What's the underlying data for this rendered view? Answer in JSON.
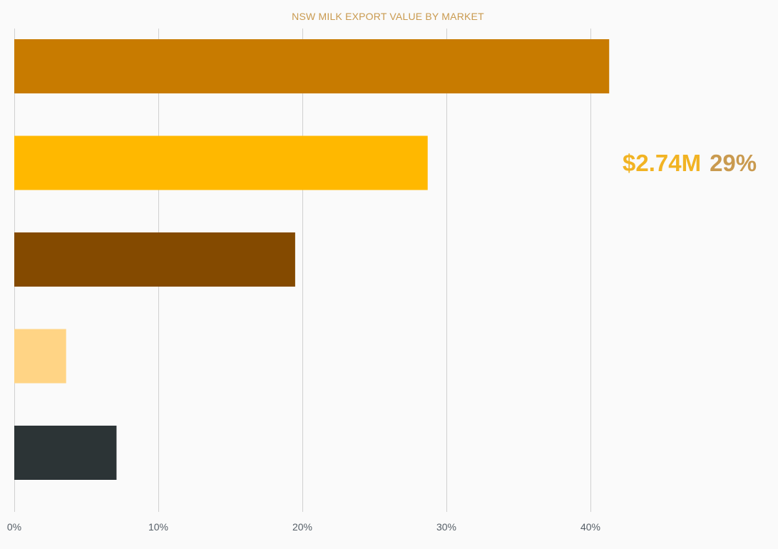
{
  "chart_data": {
    "type": "bar",
    "orientation": "horizontal",
    "title": "NSW MILK EXPORT VALUE BY MARKET",
    "xlabel": "",
    "ylabel": "",
    "xlim": [
      0,
      45
    ],
    "x_ticks": [
      {
        "value": 0,
        "label": "0%"
      },
      {
        "value": 10,
        "label": "10%"
      },
      {
        "value": 20,
        "label": "20%"
      },
      {
        "value": 30,
        "label": "30%"
      },
      {
        "value": 40,
        "label": "40%"
      }
    ],
    "grid": true,
    "values": [
      41.3,
      28.7,
      19.5,
      3.6,
      7.1
    ],
    "colors": [
      "#c87b00",
      "#ffb800",
      "#844a00",
      "#ffd485",
      "#2c3436"
    ],
    "callout": {
      "value": "$2.74M",
      "percent": "29%",
      "value_color": "#f1b323",
      "percent_color": "#c99a4f"
    }
  },
  "colors": {
    "title": "#c99a4f",
    "tick_label": "#555e66",
    "grid": "#d0d0d0",
    "background": "#fafafa"
  }
}
